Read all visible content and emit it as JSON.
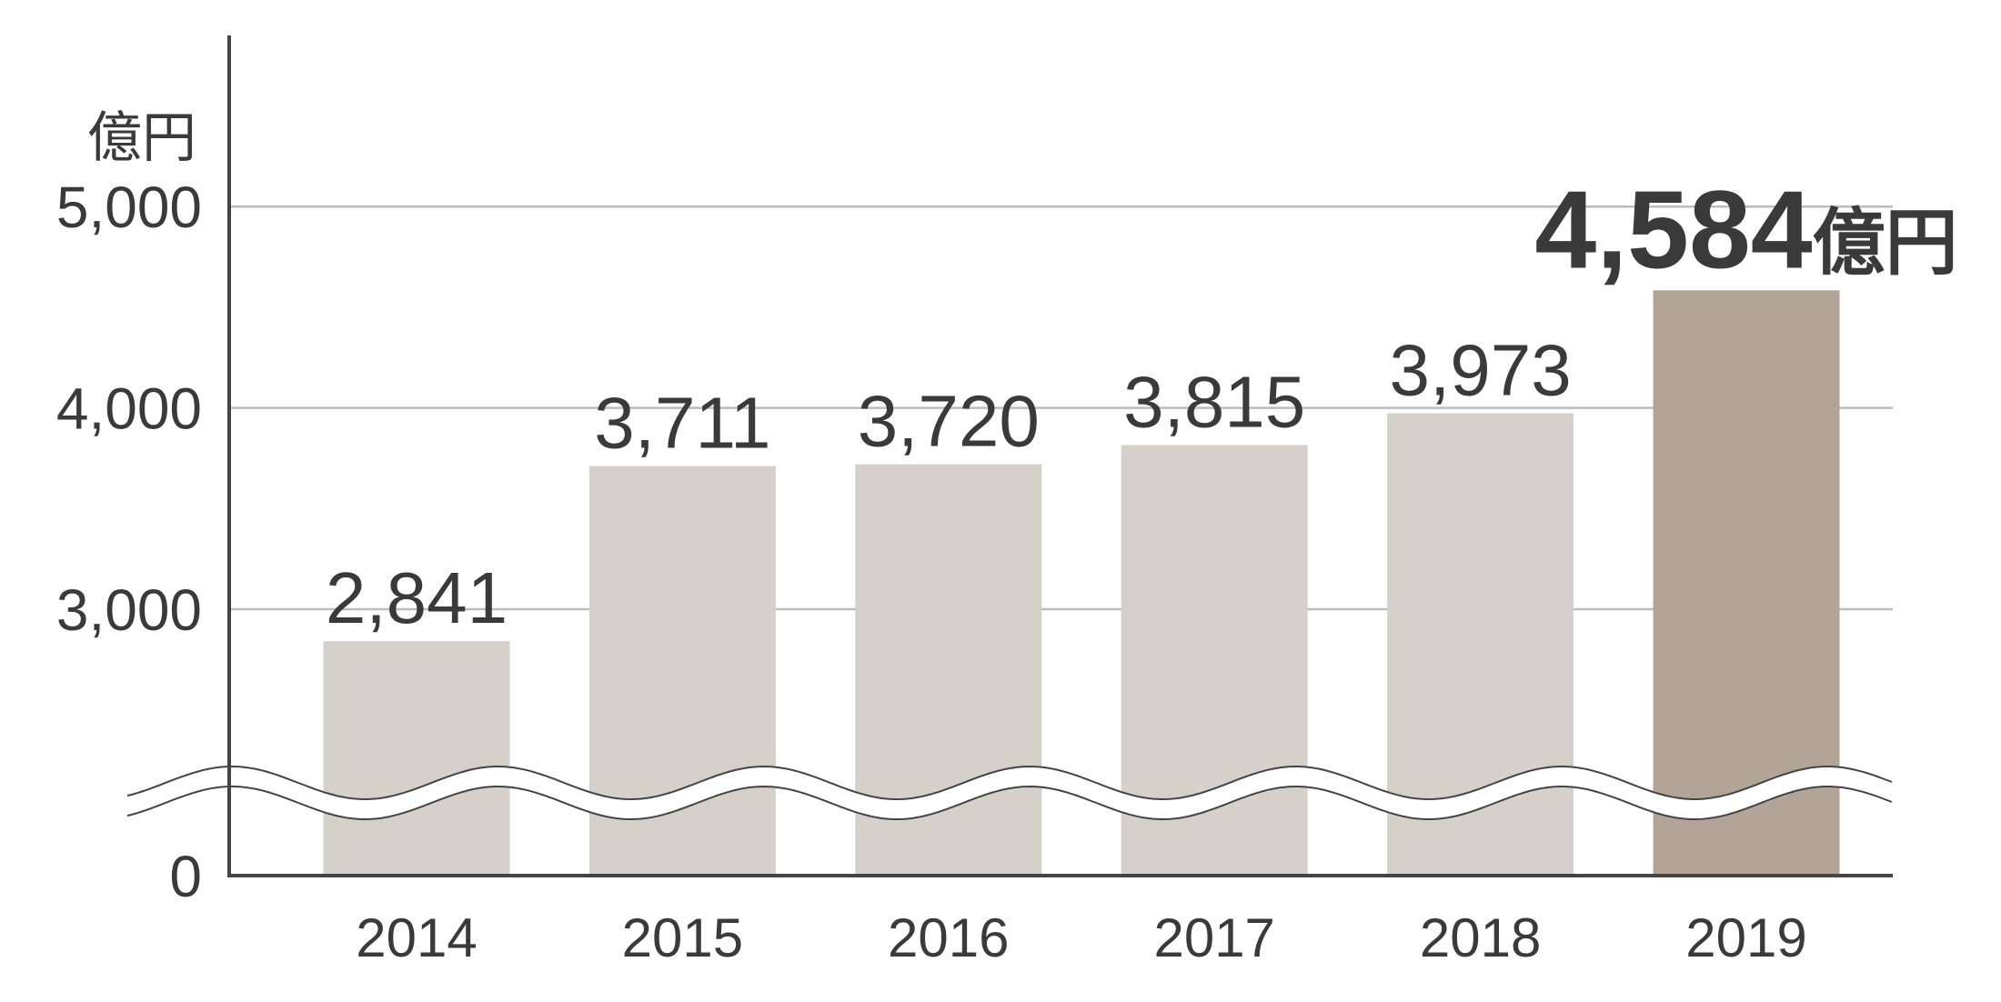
{
  "chart_data": {
    "type": "bar",
    "y_label": "億円",
    "categories": [
      "2014",
      "2015",
      "2016",
      "2017",
      "2018",
      "2019"
    ],
    "values": [
      2841,
      3711,
      3720,
      3815,
      3973,
      4584
    ],
    "value_labels": [
      "2,841",
      "3,711",
      "3,720",
      "3,815",
      "3,973",
      "4,584"
    ],
    "colors": [
      "#d6d0ca",
      "#d6d0ca",
      "#d6d0ca",
      "#d6d0ca",
      "#d6d0ca",
      "#b2a496"
    ],
    "highlight_last": true,
    "axis_break": true,
    "ylim": [
      0,
      5850
    ],
    "yticks": [
      0,
      {
        "value": 3000,
        "label": "3,000"
      },
      {
        "value": 4000,
        "label": "4,000"
      },
      {
        "value": 5000,
        "label": "5,000"
      }
    ],
    "grid": true
  }
}
